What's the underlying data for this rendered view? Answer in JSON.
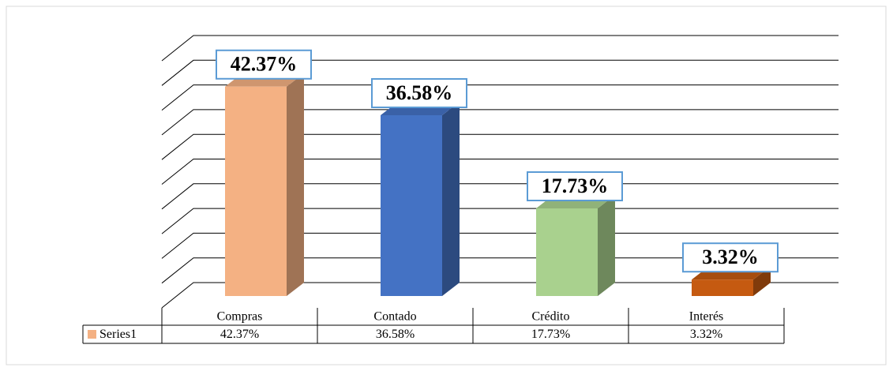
{
  "chart_data": {
    "type": "bar3d",
    "categories": [
      "Compras",
      "Contado",
      "Crédito",
      "Interés"
    ],
    "colors": [
      "#f4b183",
      "#4472c4",
      "#a9d18e",
      "#c55a11"
    ],
    "series": [
      {
        "name": "Series1",
        "color": "#f4b183",
        "values": [
          42.37,
          36.58,
          17.73,
          3.32
        ],
        "value_labels": [
          "42.37%",
          "36.58%",
          "17.73%",
          "3.32%"
        ]
      }
    ],
    "ylim": [
      0,
      50
    ],
    "yticks": [
      0,
      5,
      10,
      15,
      20,
      25,
      30,
      35,
      40,
      45,
      50
    ],
    "grid": true
  }
}
